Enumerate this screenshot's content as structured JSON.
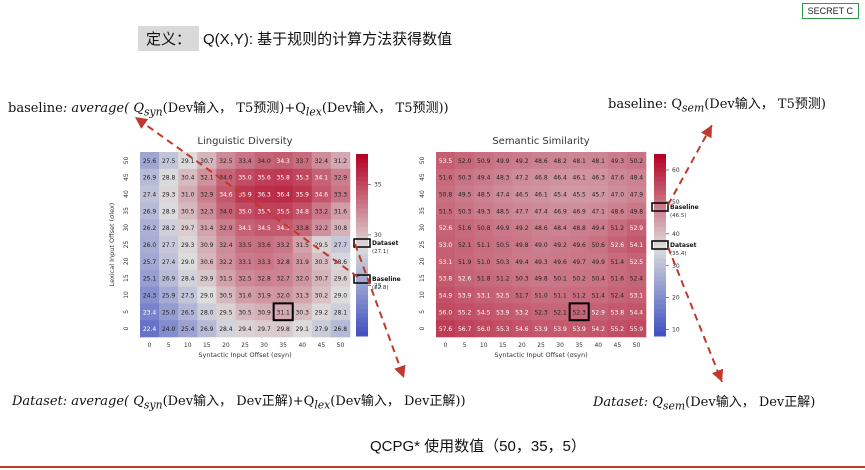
{
  "badge": "SECRET C",
  "definition": {
    "label": "定义：",
    "text": "Q(X,Y): 基于规则的计算方法获得数值"
  },
  "formulas": {
    "baseline_left_prefix": "baseline",
    "baseline_left_body": ": average( Q",
    "baseline_left_sub1": "syn",
    "baseline_left_mid": "(Dev输入， T5预测)+Q",
    "baseline_left_sub2": "lex",
    "baseline_left_end": "(Dev输入， T5预测))",
    "baseline_right_prefix": "baseline: Q",
    "baseline_right_sub": "sem",
    "baseline_right_end": "(Dev输入， T5预测)",
    "dataset_left_prefix": "Dataset",
    "dataset_left_body": ": average( Q",
    "dataset_left_sub1": "syn",
    "dataset_left_mid": "(Dev输入， Dev正解)+Q",
    "dataset_left_sub2": "lex",
    "dataset_left_end": "(Dev输入， Dev正解))",
    "dataset_right_prefix": "Dataset: Q",
    "dataset_right_sub": "sem",
    "dataset_right_end": "(Dev输入， Dev正解)"
  },
  "caption": "QCPG* 使用数值（50，35，5）",
  "chart_data": [
    {
      "type": "heatmap",
      "title": "Linguistic Diversity",
      "xlabel": "Syntactic Input Offset (σsyn)",
      "ylabel": "Lexical Input Offset (σlex)",
      "x": [
        0,
        5,
        10,
        15,
        20,
        25,
        30,
        35,
        40,
        45,
        50
      ],
      "y": [
        50,
        45,
        40,
        35,
        30,
        25,
        20,
        15,
        10,
        5,
        0
      ],
      "values": [
        [
          25.6,
          27.5,
          29.1,
          30.7,
          32.5,
          33.4,
          34.0,
          34.3,
          33.7,
          32.4,
          31.2
        ],
        [
          26.9,
          28.8,
          30.4,
          32.1,
          34.0,
          35.0,
          35.6,
          35.8,
          35.3,
          34.1,
          32.9
        ],
        [
          27.4,
          29.3,
          31.0,
          32.9,
          34.6,
          35.9,
          36.3,
          36.4,
          35.9,
          34.6,
          33.3
        ],
        [
          26.9,
          28.9,
          30.5,
          32.3,
          34.0,
          35.0,
          35.5,
          35.5,
          34.8,
          33.2,
          31.6
        ],
        [
          26.2,
          28.2,
          29.7,
          31.4,
          32.9,
          34.1,
          34.5,
          34.5,
          33.8,
          32.2,
          30.8
        ],
        [
          26.0,
          27.7,
          29.3,
          30.9,
          32.4,
          33.5,
          33.6,
          33.2,
          31.5,
          29.5,
          27.7
        ],
        [
          25.7,
          27.4,
          29.0,
          30.6,
          32.2,
          33.1,
          33.3,
          32.8,
          31.9,
          30.3,
          28.6
        ],
        [
          25.1,
          26.9,
          28.4,
          29.9,
          31.5,
          32.5,
          32.8,
          32.7,
          32.0,
          30.7,
          29.6
        ],
        [
          24.3,
          25.9,
          27.5,
          29.0,
          30.5,
          31.6,
          31.9,
          32.0,
          31.3,
          30.2,
          29.0
        ],
        [
          23.4,
          25.0,
          26.5,
          28.0,
          29.5,
          30.5,
          30.9,
          31.1,
          30.3,
          29.2,
          28.1
        ],
        [
          22.4,
          24.0,
          25.4,
          26.9,
          28.4,
          29.4,
          29.7,
          29.8,
          29.1,
          27.9,
          26.8
        ]
      ],
      "colorbar_ticks": [
        25,
        30,
        35
      ],
      "colorbar_range": [
        20,
        38
      ],
      "markers": [
        {
          "name": "Dataset",
          "value": "(27.1)"
        },
        {
          "name": "Baseline",
          "value": "(22.8)"
        }
      ]
    },
    {
      "type": "heatmap",
      "title": "Semantic Similarity",
      "xlabel": "Syntactic Input Offset (σsyn)",
      "ylabel": "",
      "x": [
        0,
        5,
        10,
        15,
        20,
        25,
        30,
        35,
        40,
        45,
        50
      ],
      "y": [
        50,
        45,
        40,
        35,
        30,
        25,
        20,
        15,
        10,
        5,
        0
      ],
      "values": [
        [
          53.5,
          52.0,
          50.9,
          49.9,
          49.2,
          48.6,
          48.2,
          48.1,
          48.1,
          49.3,
          50.2
        ],
        [
          51.6,
          50.3,
          49.4,
          48.3,
          47.2,
          46.8,
          46.4,
          46.1,
          46.3,
          47.6,
          48.4
        ],
        [
          50.8,
          49.5,
          48.5,
          47.4,
          46.5,
          46.1,
          45.4,
          45.5,
          45.7,
          47.0,
          47.9
        ],
        [
          51.5,
          50.3,
          49.3,
          48.5,
          47.7,
          47.4,
          46.9,
          46.9,
          47.1,
          48.6,
          49.8
        ],
        [
          52.6,
          51.6,
          50.8,
          49.9,
          49.2,
          48.6,
          48.4,
          48.8,
          49.4,
          51.2,
          52.9
        ],
        [
          53.0,
          52.1,
          51.1,
          50.5,
          49.8,
          49.0,
          49.2,
          49.6,
          50.6,
          52.6,
          54.1
        ],
        [
          53.1,
          51.9,
          51.0,
          50.3,
          49.4,
          49.3,
          49.6,
          49.7,
          49.9,
          51.4,
          52.5
        ],
        [
          53.8,
          52.6,
          51.8,
          51.2,
          50.3,
          49.8,
          50.1,
          50.2,
          50.4,
          51.6,
          52.4
        ],
        [
          54.9,
          53.9,
          53.1,
          52.5,
          51.7,
          51.0,
          51.1,
          51.2,
          51.4,
          52.4,
          53.1
        ],
        [
          56.0,
          55.2,
          54.5,
          53.9,
          53.2,
          52.3,
          52.1,
          52.3,
          52.9,
          53.8,
          54.4
        ],
        [
          57.6,
          56.7,
          56.0,
          55.3,
          54.6,
          53.9,
          53.9,
          53.9,
          54.2,
          55.2,
          55.9
        ]
      ],
      "colorbar_ticks": [
        10,
        20,
        30,
        40,
        50,
        60
      ],
      "colorbar_range": [
        8,
        65
      ],
      "markers": [
        {
          "name": "Baseline",
          "value": "(46.5)"
        },
        {
          "name": "Dataset",
          "value": "(35.4)"
        }
      ]
    }
  ],
  "colors": {
    "arrow": "#c0392b",
    "highlight": "#000000",
    "bottom_line": "#c0392b"
  }
}
